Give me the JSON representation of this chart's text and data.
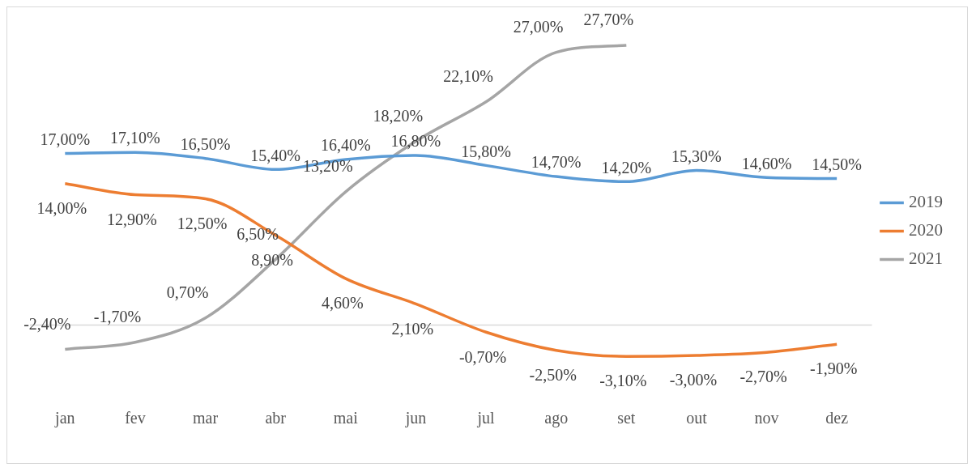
{
  "chart_data": {
    "type": "line",
    "categories": [
      "jan",
      "fev",
      "mar",
      "abr",
      "mai",
      "jun",
      "jul",
      "ago",
      "set",
      "out",
      "nov",
      "dez"
    ],
    "series": [
      {
        "name": "2019",
        "color": "#5b9bd5",
        "values": [
          17.0,
          17.1,
          16.5,
          15.4,
          16.4,
          16.8,
          15.8,
          14.7,
          14.2,
          15.3,
          14.6,
          14.5
        ],
        "value_labels": [
          "17,00%",
          "17,10%",
          "16,50%",
          "15,40%",
          "16,40%",
          "16,80%",
          "15,80%",
          "14,70%",
          "14,20%",
          "15,30%",
          "14,60%",
          "14,50%"
        ]
      },
      {
        "name": "2020",
        "color": "#ed7d31",
        "values": [
          14.0,
          12.9,
          12.5,
          8.9,
          4.6,
          2.1,
          -0.7,
          -2.5,
          -3.1,
          -3.0,
          -2.7,
          -1.9
        ],
        "value_labels": [
          "14,00%",
          "12,90%",
          "12,50%",
          "8,90%",
          "4,60%",
          "2,10%",
          "-0,70%",
          "-2,50%",
          "-3,10%",
          "-3,00%",
          "-2,70%",
          "-1,90%"
        ]
      },
      {
        "name": "2021",
        "color": "#a5a5a5",
        "values": [
          -2.4,
          -1.7,
          0.7,
          6.5,
          13.2,
          18.2,
          22.1,
          27.0,
          27.7,
          null,
          null,
          null
        ],
        "value_labels": [
          "-2,40%",
          "-1,70%",
          "0,70%",
          "6,50%",
          "13,20%",
          "18,20%",
          "22,10%",
          "27,00%",
          "27,70%",
          null,
          null,
          null
        ]
      }
    ],
    "legend": "right",
    "grid": false,
    "marker": "none",
    "line_style": "solid",
    "tick_labels": "x"
  }
}
